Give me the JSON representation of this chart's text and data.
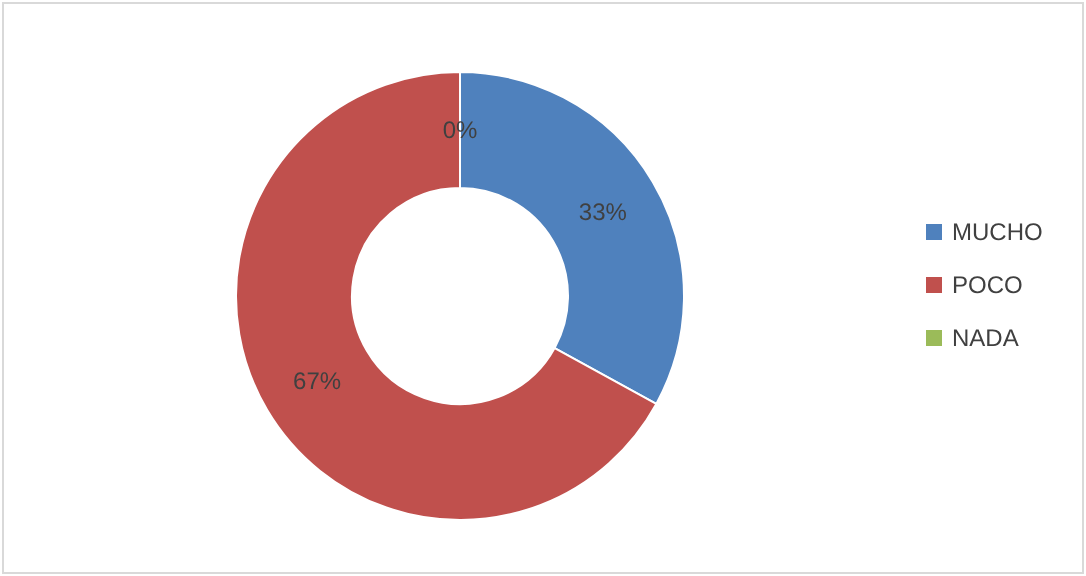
{
  "chart_data": {
    "type": "donut",
    "categories": [
      "MUCHO",
      "POCO",
      "NADA"
    ],
    "values": [
      33,
      67,
      0
    ],
    "colors": [
      "#4f81bd",
      "#c0504d",
      "#9bbb59"
    ],
    "value_labels": [
      "33%",
      "67%",
      "0%"
    ],
    "legend": "right"
  }
}
